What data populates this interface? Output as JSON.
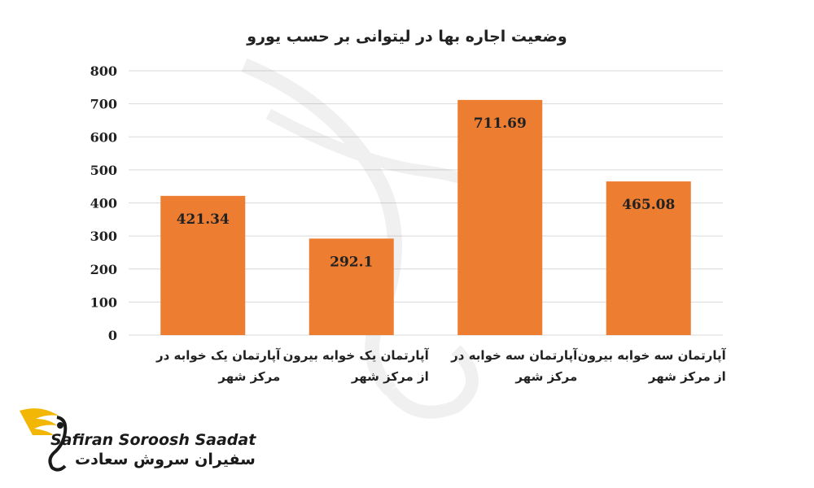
{
  "chart_data": {
    "type": "bar",
    "title": "وضعیت اجاره بها در لیتوانی بر حسب یورو",
    "categories": [
      "آپارتمان یک خوابه در مرکز شهر",
      "آپارتمان یک خوابه بیرون از مرکز شهر",
      "آپارتمان سه خوابه در مرکز شهر",
      "آپارتمان سه خوابه بیرون از مرکز شهر"
    ],
    "categories_lines": [
      [
        "آپارتمان یک خوابه در",
        "مرکز شهر"
      ],
      [
        "آپارتمان یک خوابه بیرون",
        "از مرکز شهر"
      ],
      [
        "آپارتمان سه خوابه در",
        "مرکز شهر"
      ],
      [
        "آپارتمان سه خوابه بیرون",
        "از مرکز شهر"
      ]
    ],
    "values": [
      421.34,
      292.1,
      711.69,
      465.08
    ],
    "value_labels": [
      "421.34",
      "292.1",
      "711.69",
      "465.08"
    ],
    "ylim": [
      0,
      800
    ],
    "yticks": [
      0,
      100,
      200,
      300,
      400,
      500,
      600,
      700,
      800
    ],
    "grid": true,
    "bar_color": "#ED7D31",
    "xlabel": "",
    "ylabel": ""
  },
  "brand": {
    "name_en": "Safiran Soroosh Saadat",
    "name_fa": "سفیران سروش سعادت",
    "accent_color": "#F2B705"
  }
}
